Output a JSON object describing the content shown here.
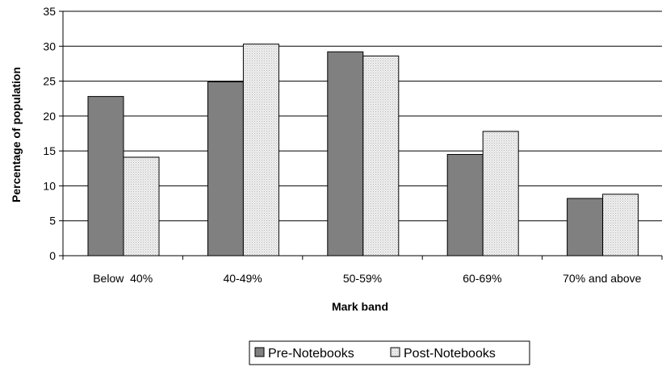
{
  "chart_data": {
    "type": "bar",
    "categories": [
      "Below  40%",
      "40-49%",
      "50-59%",
      "60-69%",
      "70% and above"
    ],
    "series": [
      {
        "name": "Pre-Notebooks",
        "values": [
          22.8,
          24.9,
          29.2,
          14.5,
          8.2
        ],
        "color": "#808080",
        "pattern": "solid"
      },
      {
        "name": "Post-Notebooks",
        "values": [
          14.1,
          30.3,
          28.6,
          17.8,
          8.8
        ],
        "color": "#e6e6e6",
        "pattern": "dotted"
      }
    ],
    "xlabel": "Mark band",
    "ylabel": "Percentage of population",
    "ylim": [
      0,
      35
    ],
    "yticks": [
      0,
      5,
      10,
      15,
      20,
      25,
      30,
      35
    ],
    "grid": true,
    "legend_position": "bottom"
  }
}
